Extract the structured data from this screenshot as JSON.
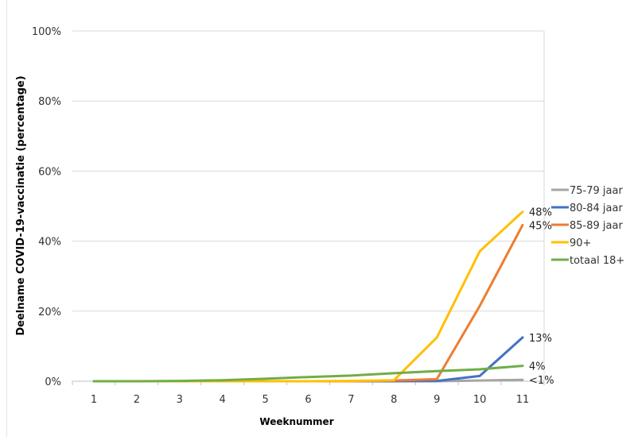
{
  "chart_data": {
    "type": "line",
    "title": "",
    "xlabel": "Weeknummer",
    "ylabel": "Deelname COVID-19-vaccinatie  (percentage)",
    "x": [
      1,
      2,
      3,
      4,
      5,
      6,
      7,
      8,
      9,
      10,
      11
    ],
    "x_ticks": [
      "1",
      "2",
      "3",
      "4",
      "5",
      "6",
      "7",
      "8",
      "9",
      "10",
      "11"
    ],
    "y_ticks": [
      "0%",
      "20%",
      "40%",
      "60%",
      "80%",
      "100%"
    ],
    "ylim": [
      0,
      100
    ],
    "grid": true,
    "legend_position": "right",
    "series": [
      {
        "name": "75-79 jaar",
        "color": "#A5A5A5",
        "values": [
          0,
          0,
          0,
          0,
          0,
          0,
          0,
          0,
          0,
          0.2,
          0.4
        ],
        "end_label": "<1%"
      },
      {
        "name": "80-84 jaar",
        "color": "#4472C4",
        "values": [
          0,
          0,
          0,
          0,
          0,
          0,
          0,
          0,
          0.1,
          1.5,
          12.5
        ],
        "end_label": "13%"
      },
      {
        "name": "85-89 jaar",
        "color": "#ED7D31",
        "values": [
          0,
          0,
          0,
          0,
          0,
          0,
          0,
          0.2,
          0.6,
          21.5,
          44.6
        ],
        "end_label": "45%"
      },
      {
        "name": "90+",
        "color": "#FFC000",
        "values": [
          0,
          0,
          0,
          0,
          0,
          0,
          0.1,
          0.3,
          12.5,
          37.1,
          48.4
        ],
        "end_label": "48%"
      },
      {
        "name": "totaal 18+",
        "color": "#70AD47",
        "values": [
          0,
          0,
          0.1,
          0.3,
          0.7,
          1.2,
          1.6,
          2.3,
          2.9,
          3.4,
          4.4
        ],
        "end_label": "4%"
      }
    ]
  }
}
